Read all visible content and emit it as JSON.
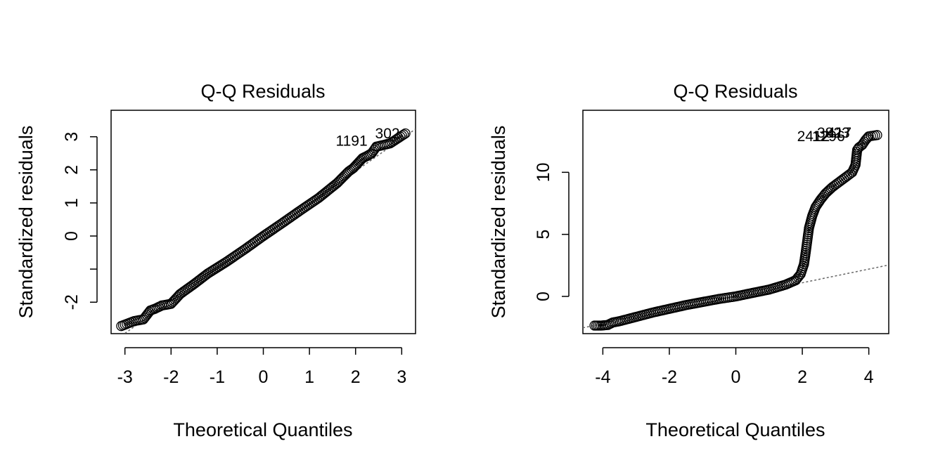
{
  "chart_data": [
    {
      "type": "scatter",
      "title": "Q-Q Residuals",
      "xlabel": "Theoretical Quantiles",
      "ylabel": "Standardized residuals",
      "xlim": [
        -3.3,
        3.3
      ],
      "ylim": [
        -2.95,
        3.8
      ],
      "xticks": [
        -3,
        -2,
        -1,
        0,
        1,
        2,
        3
      ],
      "xtick_labels": [
        "-3",
        "-2",
        "-1",
        "0",
        "1",
        "2",
        "3"
      ],
      "yticks": [
        -2,
        -1,
        0,
        1,
        2,
        3
      ],
      "ytick_labels": [
        "-2",
        "",
        "0",
        "1",
        "2",
        "3"
      ],
      "reference_line": {
        "slope": 0.98,
        "intercept": 0.0,
        "style": "dotted"
      },
      "curve": {
        "x": [
          -3.08,
          -2.8,
          -2.6,
          -2.45,
          -2.35,
          -2.2,
          -2.0,
          -1.8,
          -1.5,
          -1.2,
          -0.8,
          -0.4,
          0.0,
          0.4,
          0.8,
          1.2,
          1.6,
          1.8,
          1.85,
          1.95,
          2.05,
          2.15,
          2.25,
          2.35,
          2.45,
          2.6,
          2.75,
          3.08
        ],
        "y": [
          -2.72,
          -2.57,
          -2.52,
          -2.25,
          -2.2,
          -2.1,
          -2.05,
          -1.75,
          -1.45,
          -1.13,
          -0.78,
          -0.4,
          0.0,
          0.38,
          0.77,
          1.15,
          1.6,
          1.88,
          1.95,
          2.05,
          2.2,
          2.35,
          2.42,
          2.5,
          2.7,
          2.75,
          2.8,
          3.1
        ]
      },
      "labels": [
        {
          "text": "302",
          "x": 3.08,
          "y": 3.1
        },
        {
          "text": "1191",
          "x": 2.38,
          "y": 2.88
        }
      ]
    },
    {
      "type": "scatter",
      "title": "Q-Q Residuals",
      "xlabel": "Theoretical Quantiles",
      "ylabel": "Standardized residuals",
      "xlim": [
        -4.6,
        4.6
      ],
      "ylim": [
        -3.0,
        15.0
      ],
      "xticks": [
        -4,
        -2,
        0,
        2,
        4
      ],
      "xtick_labels": [
        "-4",
        "-2",
        "0",
        "2",
        "4"
      ],
      "yticks": [
        0,
        5,
        10
      ],
      "ytick_labels": [
        "0",
        "5",
        "10"
      ],
      "reference_line": {
        "slope": 0.55,
        "intercept": 0.0,
        "style": "dotted"
      },
      "curve": {
        "x": [
          -4.25,
          -4.05,
          -3.85,
          -3.7,
          -3.5,
          -3.0,
          -2.5,
          -2.0,
          -1.5,
          -1.0,
          -0.5,
          0.0,
          0.5,
          1.0,
          1.5,
          1.8,
          1.95,
          2.05,
          2.1,
          2.15,
          2.2,
          2.3,
          2.4,
          2.55,
          2.7,
          2.9,
          3.1,
          3.3,
          3.5,
          3.6,
          3.65,
          3.7,
          3.8,
          3.9,
          4.0,
          4.25
        ],
        "y": [
          -2.35,
          -2.35,
          -2.3,
          -2.1,
          -2.0,
          -1.65,
          -1.3,
          -1.0,
          -0.7,
          -0.45,
          -0.2,
          0.0,
          0.28,
          0.55,
          0.95,
          1.3,
          1.8,
          2.6,
          3.5,
          4.5,
          5.5,
          6.5,
          7.2,
          7.8,
          8.3,
          8.8,
          9.2,
          9.6,
          10.0,
          10.6,
          11.8,
          12.0,
          12.2,
          12.6,
          12.9,
          13.0
        ]
      },
      "labels": [
        {
          "text": "2412",
          "x": 3.0,
          "y": 12.9
        },
        {
          "text": "3823",
          "x": 3.6,
          "y": 13.2
        },
        {
          "text": "1296",
          "x": 3.45,
          "y": 12.9
        },
        {
          "text": "417",
          "x": 3.65,
          "y": 13.2
        }
      ]
    }
  ]
}
